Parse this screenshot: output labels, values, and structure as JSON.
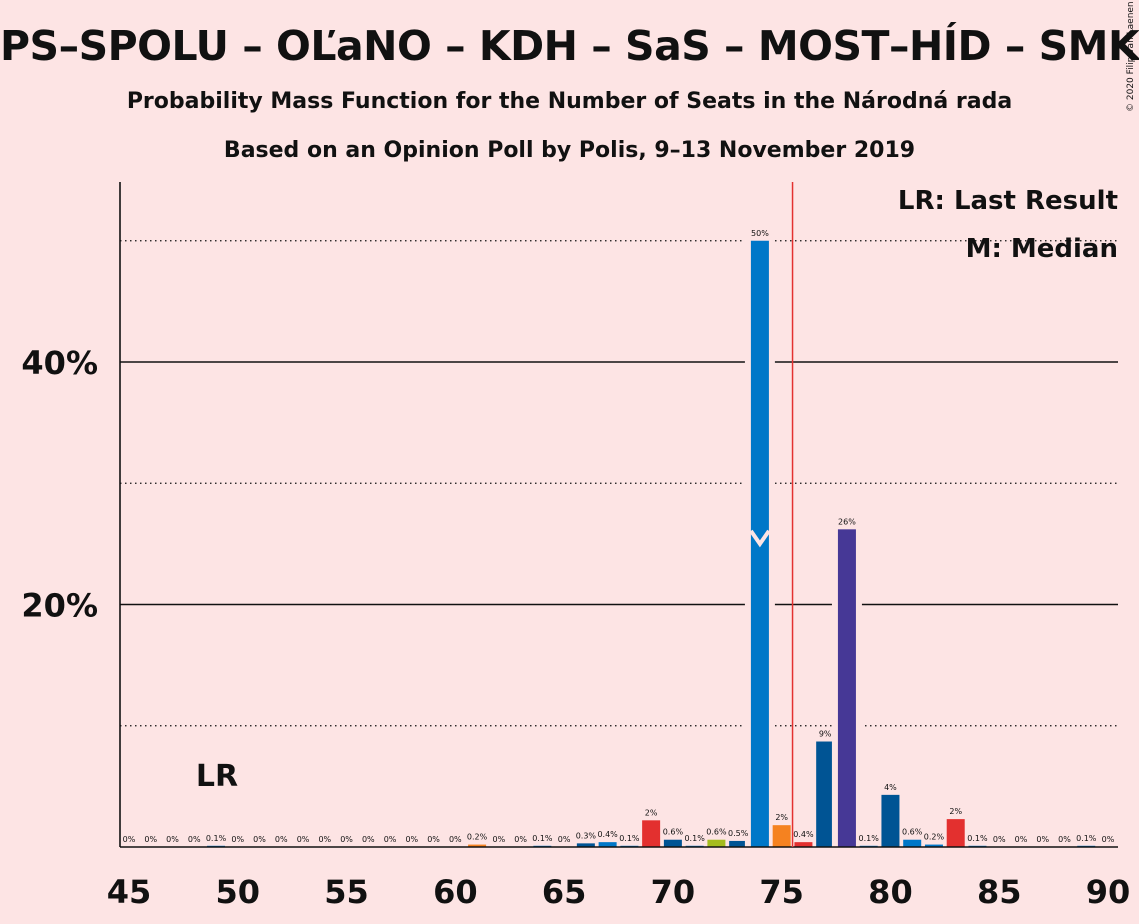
{
  "title": "PS–SPOLU – OĽaNO – KDH – SaS – MOST–HÍD – SMK",
  "subtitle": "Probability Mass Function for the Number of Seats in the Národná rada",
  "source": "Based on an Opinion Poll by Polis, 9–13 November 2019",
  "copyright": "© 2020 Filip van Laenen",
  "legend": {
    "lr": "LR: Last Result",
    "m": "M: Median"
  },
  "lr_marker": "LR",
  "chart_data": {
    "type": "bar",
    "title": "PS–SPOLU – OĽaNO – KDH – SaS – MOST–HÍD – SMK",
    "subtitle": "Probability Mass Function for the Number of Seats in the Národná rada",
    "xlabel": "",
    "ylabel": "",
    "xlim": [
      45,
      90
    ],
    "ylim": [
      0,
      55
    ],
    "x_ticks": [
      45,
      50,
      55,
      60,
      65,
      70,
      75,
      80,
      85,
      90
    ],
    "y_ticks": [
      {
        "value": 20,
        "label": "20%"
      },
      {
        "value": 40,
        "label": "40%"
      }
    ],
    "dotted_gridlines": [
      10,
      30,
      50
    ],
    "majority_line": 75.5,
    "last_result_seat": 49,
    "median_seat": 74,
    "bars": [
      {
        "x": 45,
        "value": 0,
        "label": "0%",
        "color": "#0077C8"
      },
      {
        "x": 46,
        "value": 0,
        "label": "0%",
        "color": "#0077C8"
      },
      {
        "x": 47,
        "value": 0,
        "label": "0%",
        "color": "#0077C8"
      },
      {
        "x": 48,
        "value": 0,
        "label": "0%",
        "color": "#0077C8"
      },
      {
        "x": 49,
        "value": 0.1,
        "label": "0.1%",
        "color": "#0077C8"
      },
      {
        "x": 50,
        "value": 0,
        "label": "0%",
        "color": "#0077C8"
      },
      {
        "x": 51,
        "value": 0,
        "label": "0%",
        "color": "#0077C8"
      },
      {
        "x": 52,
        "value": 0,
        "label": "0%",
        "color": "#0077C8"
      },
      {
        "x": 53,
        "value": 0,
        "label": "0%",
        "color": "#0077C8"
      },
      {
        "x": 54,
        "value": 0,
        "label": "0%",
        "color": "#0077C8"
      },
      {
        "x": 55,
        "value": 0,
        "label": "0%",
        "color": "#0077C8"
      },
      {
        "x": 56,
        "value": 0,
        "label": "0%",
        "color": "#0077C8"
      },
      {
        "x": 57,
        "value": 0,
        "label": "0%",
        "color": "#0077C8"
      },
      {
        "x": 58,
        "value": 0,
        "label": "0%",
        "color": "#0077C8"
      },
      {
        "x": 59,
        "value": 0,
        "label": "0%",
        "color": "#0077C8"
      },
      {
        "x": 60,
        "value": 0,
        "label": "0%",
        "color": "#0077C8"
      },
      {
        "x": 61,
        "value": 0.2,
        "label": "0.2%",
        "color": "#F58220"
      },
      {
        "x": 62,
        "value": 0,
        "label": "0%",
        "color": "#0077C8"
      },
      {
        "x": 63,
        "value": 0,
        "label": "0%",
        "color": "#0077C8"
      },
      {
        "x": 64,
        "value": 0.1,
        "label": "0.1%",
        "color": "#0077C8"
      },
      {
        "x": 65,
        "value": 0,
        "label": "0%",
        "color": "#0077C8"
      },
      {
        "x": 66,
        "value": 0.3,
        "label": "0.3%",
        "color": "#005494"
      },
      {
        "x": 67,
        "value": 0.4,
        "label": "0.4%",
        "color": "#0077C8"
      },
      {
        "x": 68,
        "value": 0.1,
        "label": "0.1%",
        "color": "#0077C8"
      },
      {
        "x": 69,
        "value": 2.2,
        "label": "2%",
        "color": "#E3302F"
      },
      {
        "x": 70,
        "value": 0.6,
        "label": "0.6%",
        "color": "#005494"
      },
      {
        "x": 71,
        "value": 0.1,
        "label": "0.1%",
        "color": "#0077C8"
      },
      {
        "x": 72,
        "value": 0.6,
        "label": "0.6%",
        "color": "#A5BC1E"
      },
      {
        "x": 73,
        "value": 0.5,
        "label": "0.5%",
        "color": "#005494"
      },
      {
        "x": 74,
        "value": 50,
        "label": "50%",
        "color": "#0077C8"
      },
      {
        "x": 75,
        "value": 1.8,
        "label": "2%",
        "color": "#F58220"
      },
      {
        "x": 76,
        "value": 0.4,
        "label": "0.4%",
        "color": "#E3302F"
      },
      {
        "x": 77,
        "value": 8.7,
        "label": "9%",
        "color": "#005494"
      },
      {
        "x": 78,
        "value": 26.2,
        "label": "26%",
        "color": "#463896"
      },
      {
        "x": 79,
        "value": 0.1,
        "label": "0.1%",
        "color": "#0077C8"
      },
      {
        "x": 80,
        "value": 4.3,
        "label": "4%",
        "color": "#005494"
      },
      {
        "x": 81,
        "value": 0.6,
        "label": "0.6%",
        "color": "#0077C8"
      },
      {
        "x": 82,
        "value": 0.2,
        "label": "0.2%",
        "color": "#0077C8"
      },
      {
        "x": 83,
        "value": 2.3,
        "label": "2%",
        "color": "#E3302F"
      },
      {
        "x": 84,
        "value": 0.1,
        "label": "0.1%",
        "color": "#0077C8"
      },
      {
        "x": 85,
        "value": 0,
        "label": "0%",
        "color": "#0077C8"
      },
      {
        "x": 86,
        "value": 0,
        "label": "0%",
        "color": "#0077C8"
      },
      {
        "x": 87,
        "value": 0,
        "label": "0%",
        "color": "#0077C8"
      },
      {
        "x": 88,
        "value": 0,
        "label": "0%",
        "color": "#0077C8"
      },
      {
        "x": 89,
        "value": 0.1,
        "label": "0.1%",
        "color": "#0077C8"
      },
      {
        "x": 90,
        "value": 0,
        "label": "0%",
        "color": "#0077C8"
      }
    ]
  }
}
